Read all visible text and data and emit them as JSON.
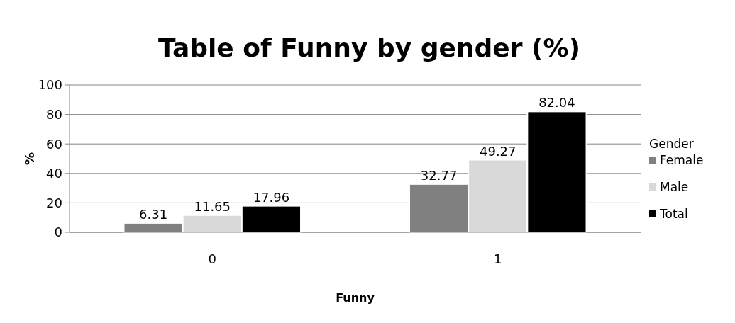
{
  "chart_data": {
    "type": "bar",
    "title": "Table of Funny by gender (%)",
    "xlabel": "Funny",
    "ylabel": "%",
    "legend_title": "Gender",
    "categories": [
      "0",
      "1"
    ],
    "series": [
      {
        "name": "Female",
        "color": "#808080",
        "values": [
          6.31,
          32.77
        ]
      },
      {
        "name": "Male",
        "color": "#d9d9d9",
        "values": [
          11.65,
          49.27
        ]
      },
      {
        "name": "Total",
        "color": "#000000",
        "values": [
          17.96,
          82.04
        ]
      }
    ],
    "ylim": [
      0,
      100
    ],
    "yticks": [
      0,
      20,
      40,
      60,
      80,
      100
    ],
    "grid": "y",
    "legend": "right",
    "data_labels": true
  }
}
